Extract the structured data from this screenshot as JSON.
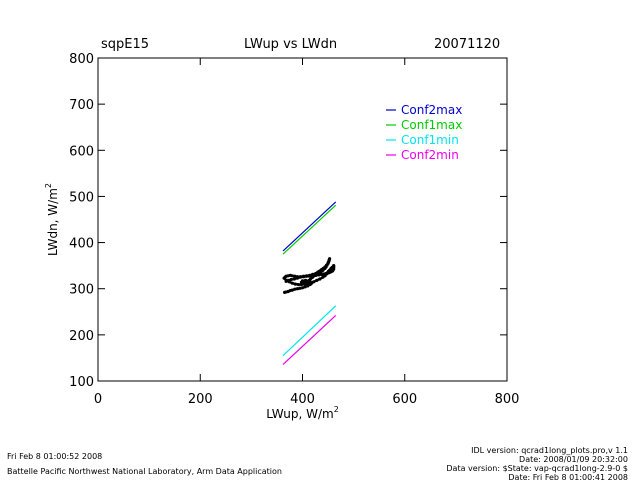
{
  "header": {
    "site": "sqpE15",
    "title": "LWup vs LWdn",
    "date": "20071120"
  },
  "chart_data": {
    "type": "scatter",
    "title": "LWup vs LWdn",
    "xlabel": "LWup, W/m",
    "xlabel_sup": "2",
    "ylabel": "LWdn, W/m",
    "ylabel_sup": "2",
    "xlim": [
      0,
      800
    ],
    "ylim": [
      100,
      800
    ],
    "xticks": [
      0,
      200,
      400,
      600,
      800
    ],
    "yticks": [
      100,
      200,
      300,
      400,
      500,
      600,
      700,
      800
    ],
    "grid": false,
    "legend_position": "top-right",
    "legend": [
      {
        "label": "Conf2max",
        "color": "#0000cc"
      },
      {
        "label": "Conf1max",
        "color": "#00cc00"
      },
      {
        "label": "Conf1min",
        "color": "#00e5ee"
      },
      {
        "label": "Conf2min",
        "color": "#ee00ee"
      }
    ],
    "series": [
      {
        "name": "Conf2max",
        "color": "#0000cc",
        "type": "line",
        "x": [
          362,
          465
        ],
        "y": [
          382,
          488
        ]
      },
      {
        "name": "Conf1max",
        "color": "#00cc00",
        "type": "line",
        "x": [
          362,
          465
        ],
        "y": [
          375,
          481
        ]
      },
      {
        "name": "Conf1min",
        "color": "#00e5ee",
        "type": "line",
        "x": [
          362,
          465
        ],
        "y": [
          155,
          263
        ]
      },
      {
        "name": "Conf2min",
        "color": "#ee00ee",
        "type": "line",
        "x": [
          362,
          465
        ],
        "y": [
          136,
          242
        ]
      },
      {
        "color": "#000000",
        "type": "scatter",
        "x": [
          365,
          368,
          372,
          376,
          380,
          385,
          390,
          395,
          400,
          405,
          410,
          415,
          418,
          412,
          406,
          400,
          398,
          402,
          408,
          415,
          420,
          425,
          430,
          436,
          440,
          444,
          446,
          448,
          450,
          451,
          452,
          453,
          452,
          450,
          447,
          444,
          441,
          438,
          436,
          433,
          430,
          426,
          420,
          414,
          408,
          402,
          396,
          390,
          385,
          380,
          376,
          372,
          368,
          366,
          364,
          368,
          374,
          380,
          386,
          392,
          398,
          404,
          410,
          416,
          422,
          428,
          434,
          440,
          444,
          447,
          449,
          451,
          453,
          455,
          456,
          458,
          460,
          461,
          461,
          461,
          461,
          460,
          459,
          458,
          456,
          454,
          452,
          450,
          446,
          442,
          438,
          432,
          426,
          420,
          414,
          408,
          402,
          396,
          390,
          384,
          378,
          372,
          368
        ],
        "y": [
          292,
          293,
          294,
          296,
          297,
          299,
          300,
          301,
          302,
          304,
          306,
          309,
          312,
          316,
          318,
          317,
          314,
          312,
          316,
          320,
          325,
          329,
          333,
          336,
          340,
          344,
          347,
          351,
          355,
          358,
          362,
          365,
          361,
          356,
          351,
          347,
          344,
          342,
          340,
          338,
          336,
          333,
          331,
          329,
          328,
          327,
          326,
          326,
          327,
          328,
          329,
          328,
          327,
          325,
          323,
          318,
          315,
          312,
          310,
          309,
          309,
          310,
          311,
          313,
          315,
          318,
          321,
          325,
          328,
          332,
          335,
          338,
          340,
          342,
          344,
          346,
          348,
          350,
          348,
          346,
          343,
          341,
          339,
          338,
          337,
          336,
          335,
          334,
          333,
          332,
          331,
          330,
          329,
          328,
          327,
          327,
          326,
          325,
          323,
          321,
          320,
          318,
          316
        ]
      }
    ]
  },
  "footer": {
    "left_line1": "Fri Feb  8 01:00:52 2008",
    "left_line2": "Battelle Pacific Northwest National Laboratory, Arm Data Application",
    "right_line1": "IDL version: qcrad1long_plots.pro,v 1.1",
    "right_line2": "Date: 2008/01/09 20:32:00",
    "right_line3": "Data version: $State: vap-qcrad1long-2.9-0 $",
    "right_line4": "Date: Fri Feb  8 01:00:41 2008"
  }
}
